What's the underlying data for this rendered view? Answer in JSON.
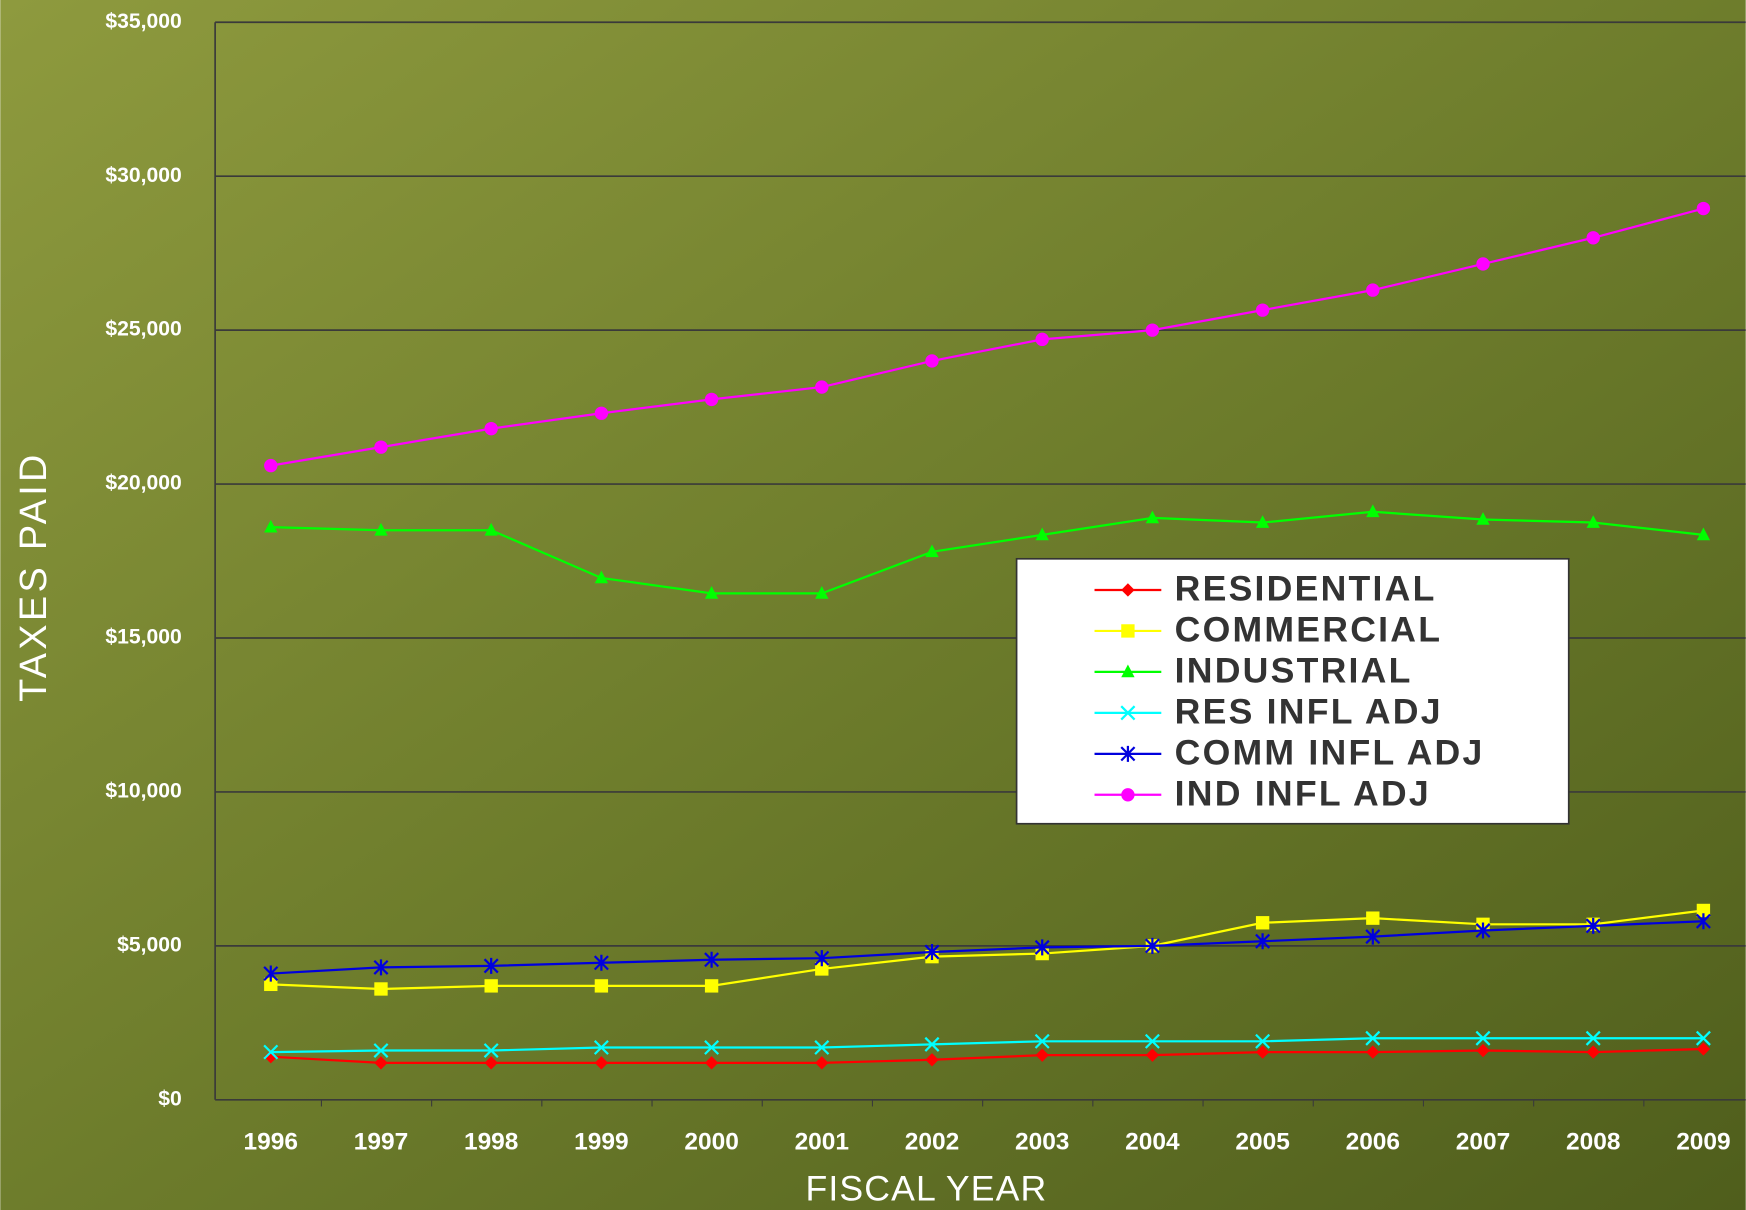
{
  "chart_data": {
    "type": "line",
    "y_label": "TAXES PAID",
    "x_label": "FISCAL YEAR",
    "categories": [
      "1996",
      "1997",
      "1998",
      "1999",
      "2000",
      "2001",
      "2002",
      "2003",
      "2004",
      "2005",
      "2006",
      "2007",
      "2008",
      "2009"
    ],
    "ylim": [
      0,
      35000
    ],
    "yticks": [
      {
        "value": 0,
        "label": "$0"
      },
      {
        "value": 5000,
        "label": "$5,000"
      },
      {
        "value": 10000,
        "label": "$10,000"
      },
      {
        "value": 15000,
        "label": "$15,000"
      },
      {
        "value": 20000,
        "label": "$20,000"
      },
      {
        "value": 25000,
        "label": "$25,000"
      },
      {
        "value": 30000,
        "label": "$30,000"
      },
      {
        "value": 35000,
        "label": "$35,000"
      }
    ],
    "grid": true,
    "legend": "center-right",
    "series": [
      {
        "name": "RESIDENTIAL",
        "color": "#ff0000",
        "marker": "diamond",
        "values": [
          1400,
          1200,
          1200,
          1200,
          1200,
          1200,
          1300,
          1450,
          1450,
          1550,
          1550,
          1600,
          1550,
          1650
        ]
      },
      {
        "name": "COMMERCIAL",
        "color": "#ffff00",
        "marker": "square",
        "values": [
          3750,
          3600,
          3700,
          3700,
          3700,
          4250,
          4650,
          4750,
          5000,
          5750,
          5900,
          5700,
          5700,
          6150
        ]
      },
      {
        "name": "INDUSTRIAL",
        "color": "#00ff00",
        "marker": "triangle",
        "values": [
          18600,
          18500,
          18500,
          16950,
          16450,
          16450,
          17800,
          18350,
          18900,
          18750,
          19100,
          18850,
          18750,
          18350
        ]
      },
      {
        "name": "RES INFL ADJ",
        "color": "#00ffff",
        "marker": "x",
        "values": [
          1550,
          1600,
          1600,
          1700,
          1700,
          1700,
          1800,
          1900,
          1900,
          1900,
          2000,
          2000,
          2000,
          2000
        ]
      },
      {
        "name": "COMM INFL ADJ",
        "color": "#0000dd",
        "marker": "star",
        "values": [
          4100,
          4300,
          4350,
          4450,
          4550,
          4600,
          4800,
          4950,
          5000,
          5150,
          5300,
          5500,
          5650,
          5800
        ]
      },
      {
        "name": "IND INFL ADJ",
        "color": "#ff00ff",
        "marker": "circle",
        "values": [
          20600,
          21200,
          21800,
          22300,
          22750,
          23150,
          24000,
          24700,
          25000,
          25650,
          26300,
          27150,
          28000,
          28950
        ]
      }
    ]
  }
}
